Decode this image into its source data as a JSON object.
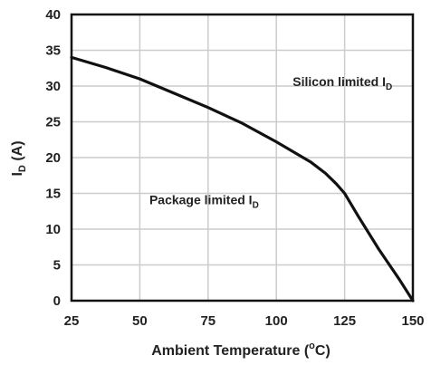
{
  "chart_data": {
    "type": "line",
    "title": "",
    "xlabel": {
      "main": "Ambient Temperature (",
      "sup": "o",
      "tail": "C)"
    },
    "ylabel": {
      "main": "I",
      "sub": "D",
      "tail": " (A)"
    },
    "xlim": [
      25,
      150
    ],
    "ylim": [
      0,
      40
    ],
    "x_ticks": [
      25,
      50,
      75,
      100,
      125,
      150
    ],
    "y_ticks": [
      0,
      5,
      10,
      15,
      20,
      25,
      30,
      35,
      40
    ],
    "grid": true,
    "series": [
      {
        "x": [
          25,
          37.5,
          50,
          62.5,
          75,
          87.5,
          100,
          112.5,
          118,
          122,
          125,
          130,
          137.5,
          145,
          150
        ],
        "y": [
          34,
          32.6,
          31,
          29,
          27,
          24.8,
          22.2,
          19.4,
          17.8,
          16.3,
          15,
          11.8,
          7.2,
          3,
          0
        ],
        "color": "#111111"
      }
    ],
    "annotations": [
      {
        "text": "Silicon limited I",
        "sub": "D",
        "x": 106,
        "y": 30
      },
      {
        "text": "Package limited I",
        "sub": "D",
        "x": 53.5,
        "y": 13.5
      }
    ]
  }
}
